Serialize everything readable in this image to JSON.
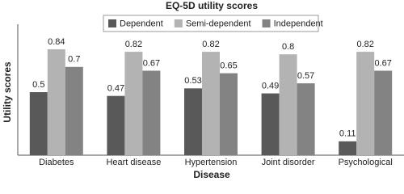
{
  "chart_data": {
    "type": "bar",
    "title": "EQ-5D utility scores",
    "x_label": "Disease",
    "y_label": "Utility scores",
    "categories": [
      "Diabetes",
      "Heart disease",
      "Hypertension",
      "Joint disorder",
      "Psychological"
    ],
    "series": [
      {
        "name": "Dependent",
        "color": "#595959",
        "values": [
          0.5,
          0.47,
          0.53,
          0.49,
          0.11
        ]
      },
      {
        "name": "Semi-dependent",
        "color": "#b3b3b3",
        "values": [
          0.84,
          0.82,
          0.82,
          0.8,
          0.82
        ]
      },
      {
        "name": "Independent",
        "color": "#838383",
        "values": [
          0.7,
          0.67,
          0.65,
          0.57,
          0.67
        ]
      }
    ],
    "ylim": [
      0,
      1
    ],
    "legend": "top"
  }
}
